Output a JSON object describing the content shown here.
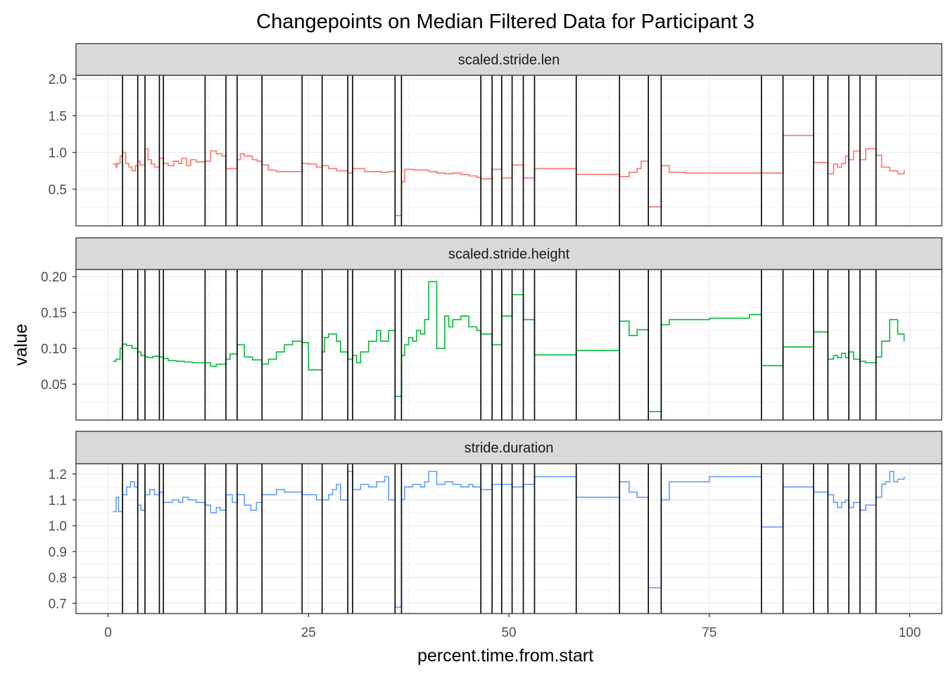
{
  "title": "Changepoints on Median Filtered Data for Participant 3",
  "xlabel": "percent.time.from.start",
  "ylabel": "value",
  "chart_data": {
    "type": "line",
    "title": "Changepoints on Median Filtered Data for Participant 3",
    "xlabel": "percent.time.from.start",
    "ylabel": "value",
    "xlim": [
      -4,
      104
    ],
    "x_ticks": [
      0,
      25,
      50,
      75,
      100
    ],
    "x_tick_labels": [
      "0",
      "25",
      "50",
      "75",
      "100"
    ],
    "grid": true,
    "changepoints": [
      1.8,
      3.7,
      4.6,
      6.4,
      6.9,
      12.1,
      14.7,
      16.1,
      19.2,
      24.2,
      26.7,
      29.9,
      30.5,
      35.8,
      36.6,
      46.5,
      47.9,
      49.1,
      50.4,
      51.8,
      53.2,
      58.4,
      63.8,
      67.4,
      69.0,
      81.5,
      84.2,
      88.0,
      89.8,
      92.4,
      93.8,
      95.8
    ],
    "panels": [
      {
        "name": "scaled.stride.len",
        "color": "#f8766d",
        "ylim": [
          0.0,
          2.05
        ],
        "y_ticks": [
          0.5,
          1.0,
          1.5,
          2.0
        ],
        "y_tick_labels": [
          "0.5",
          "1.0",
          "1.5",
          "2.0"
        ],
        "x": [
          0.6,
          1.0,
          1.1,
          1.5,
          1.8,
          2.2,
          2.6,
          3.0,
          3.4,
          3.7,
          4.0,
          4.6,
          5.0,
          5.4,
          5.8,
          6.4,
          6.9,
          7.5,
          8.2,
          8.8,
          9.2,
          9.8,
          10.3,
          11.0,
          12.1,
          12.8,
          13.5,
          14.2,
          14.7,
          16.1,
          16.5,
          17.0,
          18.0,
          18.6,
          19.2,
          20.0,
          21.0,
          22.5,
          24.2,
          25.0,
          26.0,
          26.7,
          27.5,
          28.5,
          29.9,
          30.5,
          32.0,
          34.0,
          35.0,
          35.8,
          36.6,
          37.0,
          38.0,
          39.0,
          40.0,
          41.0,
          42.0,
          43.0,
          44.0,
          45.0,
          46.0,
          46.5,
          47.9,
          49.1,
          50.4,
          51.8,
          53.2,
          58.4,
          63.8,
          65.0,
          66.0,
          66.5,
          67.4,
          69.0,
          70.0,
          72.0,
          75.0,
          81.5,
          84.2,
          88.0,
          89.8,
          90.5,
          91.0,
          91.5,
          92.0,
          92.4,
          93.0,
          93.8,
          94.5,
          95.8,
          96.5,
          97.5,
          98.5,
          99.3
        ],
        "values": [
          0.84,
          0.8,
          0.85,
          0.95,
          1.0,
          0.85,
          0.8,
          0.75,
          0.82,
          0.88,
          0.83,
          1.05,
          0.9,
          0.84,
          0.8,
          0.92,
          0.85,
          0.82,
          0.88,
          0.85,
          0.92,
          0.82,
          0.9,
          0.87,
          0.88,
          1.02,
          0.98,
          0.95,
          0.78,
          0.9,
          0.98,
          0.95,
          0.9,
          0.88,
          0.83,
          0.76,
          0.74,
          0.74,
          0.85,
          0.84,
          0.8,
          0.82,
          0.78,
          0.75,
          0.72,
          0.78,
          0.74,
          0.73,
          0.74,
          0.14,
          0.6,
          0.77,
          0.76,
          0.76,
          0.74,
          0.72,
          0.71,
          0.72,
          0.7,
          0.68,
          0.66,
          0.64,
          0.77,
          0.65,
          0.83,
          0.65,
          0.78,
          0.7,
          0.67,
          0.73,
          0.78,
          0.88,
          0.26,
          0.82,
          0.73,
          0.72,
          0.72,
          0.72,
          1.23,
          0.86,
          0.71,
          0.84,
          0.8,
          0.85,
          0.95,
          0.9,
          1.02,
          0.9,
          1.05,
          0.96,
          0.8,
          0.75,
          0.71,
          0.76
        ]
      },
      {
        "name": "scaled.stride.height",
        "color": "#00ba38",
        "ylim": [
          0.0,
          0.21
        ],
        "y_ticks": [
          0.05,
          0.1,
          0.15,
          0.2
        ],
        "y_tick_labels": [
          "0.05",
          "0.10",
          "0.15",
          "0.20"
        ],
        "x": [
          0.6,
          1.0,
          1.5,
          1.8,
          2.3,
          3.0,
          3.7,
          4.1,
          4.6,
          5.0,
          5.6,
          6.4,
          6.9,
          7.5,
          8.5,
          9.5,
          10.5,
          11.5,
          12.1,
          12.8,
          13.5,
          14.7,
          15.2,
          16.1,
          17.0,
          18.0,
          19.2,
          20.0,
          21.0,
          22.0,
          23.0,
          24.2,
          25.0,
          26.7,
          27.0,
          27.5,
          28.0,
          28.5,
          29.0,
          29.9,
          30.5,
          31.0,
          31.5,
          32.5,
          33.5,
          34.0,
          35.0,
          35.8,
          36.6,
          37.0,
          37.5,
          38.0,
          38.5,
          39.0,
          39.5,
          40.0,
          41.0,
          42.0,
          42.5,
          43.0,
          44.0,
          45.0,
          46.0,
          46.5,
          47.9,
          49.1,
          50.4,
          51.8,
          53.2,
          58.4,
          63.8,
          65.0,
          66.0,
          67.4,
          69.0,
          70.0,
          75.0,
          80.0,
          81.5,
          84.2,
          88.0,
          89.8,
          90.5,
          91.0,
          91.5,
          92.0,
          92.4,
          93.0,
          93.8,
          94.5,
          95.8,
          96.5,
          97.5,
          98.5,
          99.3
        ],
        "values": [
          0.082,
          0.085,
          0.1,
          0.106,
          0.104,
          0.1,
          0.095,
          0.09,
          0.088,
          0.087,
          0.089,
          0.088,
          0.086,
          0.083,
          0.082,
          0.081,
          0.08,
          0.08,
          0.08,
          0.075,
          0.078,
          0.085,
          0.092,
          0.105,
          0.088,
          0.084,
          0.078,
          0.085,
          0.095,
          0.105,
          0.11,
          0.108,
          0.07,
          0.095,
          0.115,
          0.12,
          0.12,
          0.11,
          0.095,
          0.085,
          0.09,
          0.08,
          0.095,
          0.11,
          0.125,
          0.11,
          0.125,
          0.033,
          0.09,
          0.105,
          0.115,
          0.11,
          0.125,
          0.12,
          0.14,
          0.193,
          0.1,
          0.145,
          0.13,
          0.14,
          0.145,
          0.13,
          0.125,
          0.12,
          0.105,
          0.145,
          0.175,
          0.14,
          0.091,
          0.097,
          0.138,
          0.118,
          0.126,
          0.012,
          0.133,
          0.14,
          0.142,
          0.147,
          0.076,
          0.102,
          0.123,
          0.085,
          0.09,
          0.087,
          0.093,
          0.087,
          0.095,
          0.085,
          0.082,
          0.08,
          0.088,
          0.11,
          0.14,
          0.12,
          0.11
        ]
      },
      {
        "name": "stride.duration",
        "color": "#619cff",
        "ylim": [
          0.66,
          1.24
        ],
        "y_ticks": [
          0.7,
          0.8,
          0.9,
          1.0,
          1.1,
          1.2
        ],
        "y_tick_labels": [
          "0.7",
          "0.8",
          "0.9",
          "1.0",
          "1.1",
          "1.2"
        ],
        "x": [
          0.6,
          1.0,
          1.3,
          1.8,
          2.3,
          2.8,
          3.3,
          3.7,
          4.1,
          4.6,
          5.2,
          5.8,
          6.4,
          6.9,
          8.0,
          8.8,
          9.3,
          10.0,
          11.0,
          12.1,
          12.8,
          13.5,
          14.0,
          14.7,
          15.5,
          16.1,
          17.0,
          17.8,
          18.5,
          19.2,
          20.0,
          21.0,
          22.0,
          23.0,
          24.2,
          25.5,
          26.0,
          26.7,
          27.5,
          28.0,
          28.5,
          29.0,
          29.9,
          30.5,
          31.5,
          32.5,
          33.5,
          34.5,
          35.0,
          35.8,
          36.6,
          37.0,
          38.0,
          39.0,
          39.5,
          40.0,
          41.0,
          42.0,
          43.0,
          44.0,
          45.0,
          45.5,
          46.5,
          47.9,
          49.1,
          50.4,
          51.8,
          53.2,
          58.4,
          63.8,
          65.0,
          66.0,
          67.4,
          69.0,
          70.0,
          73.0,
          75.0,
          80.0,
          81.5,
          84.2,
          88.0,
          89.8,
          90.5,
          91.0,
          91.5,
          92.0,
          92.4,
          93.0,
          93.8,
          94.5,
          95.8,
          96.5,
          97.0,
          97.5,
          98.0,
          98.5,
          99.3
        ],
        "values": [
          1.055,
          1.11,
          1.055,
          1.12,
          1.15,
          1.17,
          1.15,
          1.08,
          1.06,
          1.12,
          1.14,
          1.12,
          1.13,
          1.09,
          1.1,
          1.09,
          1.11,
          1.1,
          1.09,
          1.08,
          1.05,
          1.07,
          1.06,
          1.12,
          1.09,
          1.12,
          1.08,
          1.06,
          1.09,
          1.12,
          1.12,
          1.14,
          1.13,
          1.13,
          1.12,
          1.12,
          1.1,
          1.1,
          1.12,
          1.14,
          1.16,
          1.1,
          1.21,
          1.14,
          1.16,
          1.15,
          1.17,
          1.19,
          1.1,
          0.685,
          1.1,
          1.15,
          1.16,
          1.15,
          1.17,
          1.21,
          1.16,
          1.17,
          1.16,
          1.15,
          1.16,
          1.15,
          1.14,
          1.16,
          1.16,
          1.15,
          1.16,
          1.19,
          1.11,
          1.17,
          1.13,
          1.11,
          0.76,
          1.1,
          1.17,
          1.17,
          1.19,
          1.19,
          0.995,
          1.15,
          1.13,
          1.12,
          1.09,
          1.07,
          1.09,
          1.1,
          1.07,
          1.09,
          1.06,
          1.08,
          1.11,
          1.16,
          1.17,
          1.21,
          1.17,
          1.18,
          1.19
        ]
      }
    ]
  }
}
